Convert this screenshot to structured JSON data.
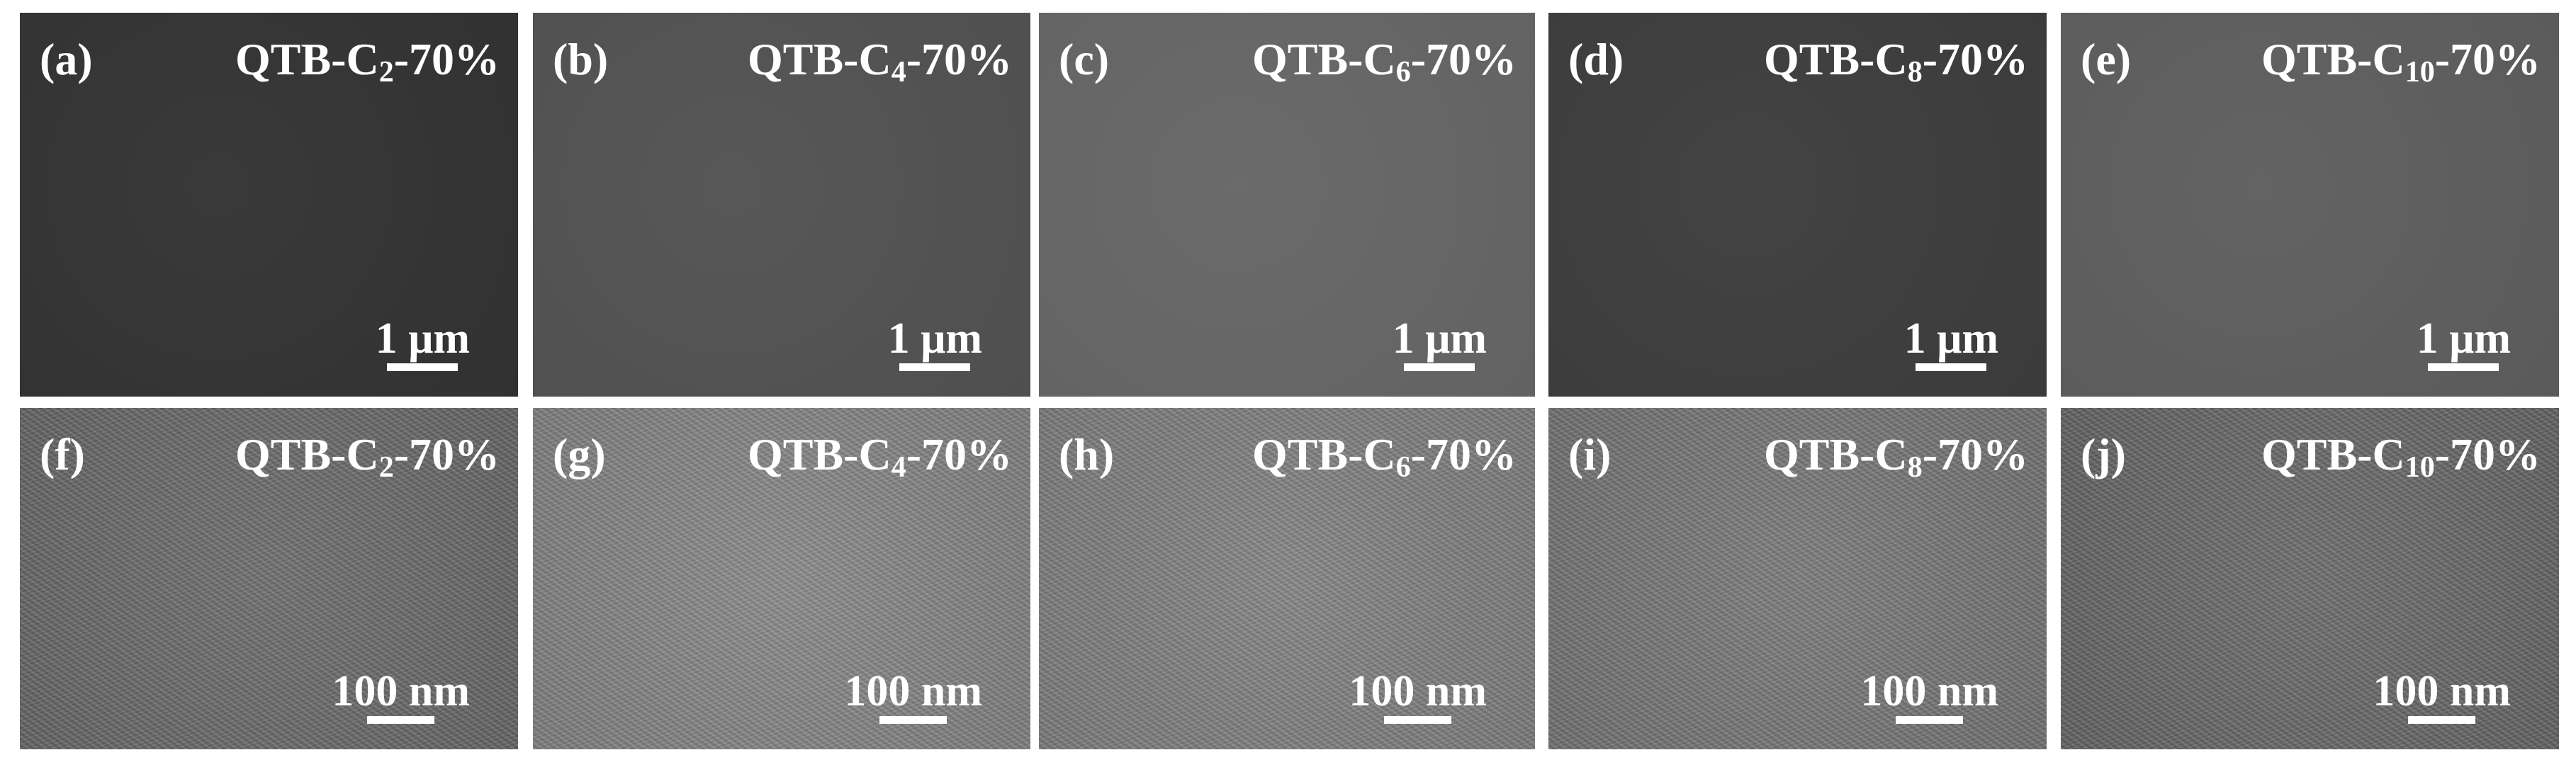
{
  "panels": [
    {
      "tag": "(a)",
      "title": {
        "pre": "QTB-C",
        "sub": "2",
        "post": "-70%"
      },
      "scale": "1 μm",
      "color": "#333333"
    },
    {
      "tag": "(b)",
      "title": {
        "pre": "QTB-C",
        "sub": "4",
        "post": "-70%"
      },
      "scale": "1 μm",
      "color": "#525252"
    },
    {
      "tag": "(c)",
      "title": {
        "pre": "QTB-C",
        "sub": "6",
        "post": "-70%"
      },
      "scale": "1 μm",
      "color": "#666666"
    },
    {
      "tag": "(d)",
      "title": {
        "pre": "QTB-C",
        "sub": "8",
        "post": "-70%"
      },
      "scale": "1 μm",
      "color": "#3d3d3d"
    },
    {
      "tag": "(e)",
      "title": {
        "pre": "QTB-C",
        "sub": "10",
        "post": "-70%"
      },
      "scale": "1 μm",
      "color": "#5e5e5e"
    },
    {
      "tag": "(f)",
      "title": {
        "pre": "QTB-C",
        "sub": "2",
        "post": "-70%"
      },
      "scale": "100 nm",
      "color": "#6e6e6e"
    },
    {
      "tag": "(g)",
      "title": {
        "pre": "QTB-C",
        "sub": "4",
        "post": "-70%"
      },
      "scale": "100 nm",
      "color": "#8a8a8a"
    },
    {
      "tag": "(h)",
      "title": {
        "pre": "QTB-C",
        "sub": "6",
        "post": "-70%"
      },
      "scale": "100 nm",
      "color": "#858585"
    },
    {
      "tag": "(i)",
      "title": {
        "pre": "QTB-C",
        "sub": "8",
        "post": "-70%"
      },
      "scale": "100 nm",
      "color": "#7b7b7b"
    },
    {
      "tag": "(j)",
      "title": {
        "pre": "QTB-C",
        "sub": "10",
        "post": "-70%"
      },
      "scale": "100 nm",
      "color": "#6c6c6c"
    }
  ]
}
